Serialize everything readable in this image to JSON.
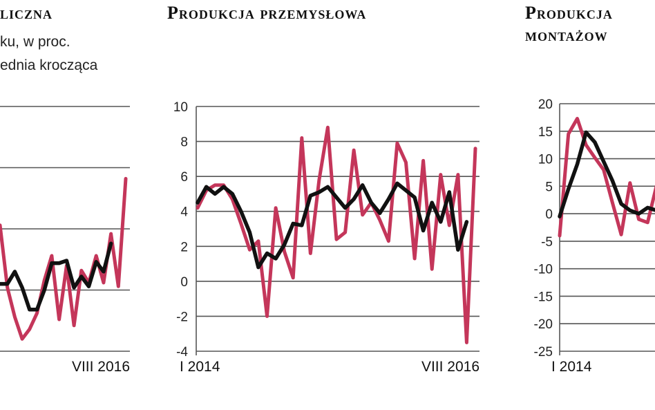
{
  "colors": {
    "monthly": "#c4365a",
    "moving_average": "#111111",
    "grid": "#555555"
  },
  "panels": {
    "p1": {
      "title": "liczna",
      "subtitle_1": "ku, w proc.",
      "subtitle_2": "ednia krocząca"
    },
    "p2": {
      "title": "Produkcja przemysłowa"
    },
    "p3": {
      "title_1": "Produkcja",
      "title_2": "montażow"
    }
  },
  "chart_data": [
    {
      "type": "line",
      "title": "liczna",
      "x_labels": [
        "VIII 2016"
      ],
      "ylim": [
        -5,
        15
      ],
      "y_ticks": [],
      "grid": true,
      "series": [
        {
          "color": "#c4365a",
          "values": [
            5.3,
            0.2,
            -2.2,
            -4.0,
            -3.2,
            -1.9,
            0.8,
            2.8,
            -2.4,
            2.0,
            -2.9,
            1.6,
            0.6,
            2.8,
            0.6,
            4.6,
            0.3,
            9.1
          ]
        },
        {
          "color": "#111111",
          "values": [
            0.5,
            0.5,
            1.5,
            0.2,
            -1.6,
            -1.6,
            0.0,
            2.2,
            2.2,
            2.4,
            0.2,
            1.1,
            0.3,
            2.3,
            1.5,
            3.8
          ]
        }
      ]
    },
    {
      "type": "line",
      "title": "Produkcja przemysłowa",
      "x_labels": [
        "I 2014",
        "VIII 2016"
      ],
      "ylim": [
        -4,
        10
      ],
      "y_ticks": [
        -4,
        -2,
        0,
        2,
        4,
        6,
        8,
        10
      ],
      "grid": true,
      "series": [
        {
          "color": "#c4365a",
          "values": [
            4.2,
            5.2,
            5.5,
            5.5,
            4.7,
            3.3,
            1.8,
            2.3,
            -2.0,
            4.2,
            1.7,
            0.2,
            8.2,
            1.6,
            5.8,
            8.8,
            2.4,
            2.8,
            7.5,
            3.8,
            4.5,
            3.5,
            2.3,
            7.9,
            6.8,
            1.3,
            6.9,
            0.7,
            6.1,
            3.2,
            6.1,
            -3.5,
            7.6
          ]
        },
        {
          "color": "#111111",
          "values": [
            4.5,
            5.4,
            5.0,
            5.4,
            5.0,
            4.0,
            2.8,
            0.8,
            1.6,
            1.3,
            2.1,
            3.3,
            3.2,
            4.9,
            5.1,
            5.4,
            4.8,
            4.2,
            4.7,
            5.5,
            4.5,
            3.9,
            4.7,
            5.6,
            5.2,
            4.8,
            2.9,
            4.5,
            3.4,
            5.1,
            1.8,
            3.4
          ]
        }
      ]
    },
    {
      "type": "line",
      "title": "Produkcja montażow",
      "x_labels": [
        "I 2014"
      ],
      "ylim": [
        -25,
        20
      ],
      "y_ticks": [
        -25,
        -20,
        -15,
        -10,
        -5,
        0,
        5,
        10,
        15,
        20
      ],
      "grid": true,
      "series": [
        {
          "color": "#c4365a",
          "values": [
            -4.0,
            14.5,
            17.3,
            12.5,
            10.2,
            8.0,
            2.0,
            -3.8,
            5.6,
            -1.0,
            -1.6,
            5.0
          ]
        },
        {
          "color": "#111111",
          "values": [
            -0.5,
            4.5,
            9.0,
            14.8,
            13.0,
            9.5,
            6.0,
            1.8,
            0.6,
            0.0,
            1.1,
            0.6
          ]
        }
      ]
    }
  ]
}
